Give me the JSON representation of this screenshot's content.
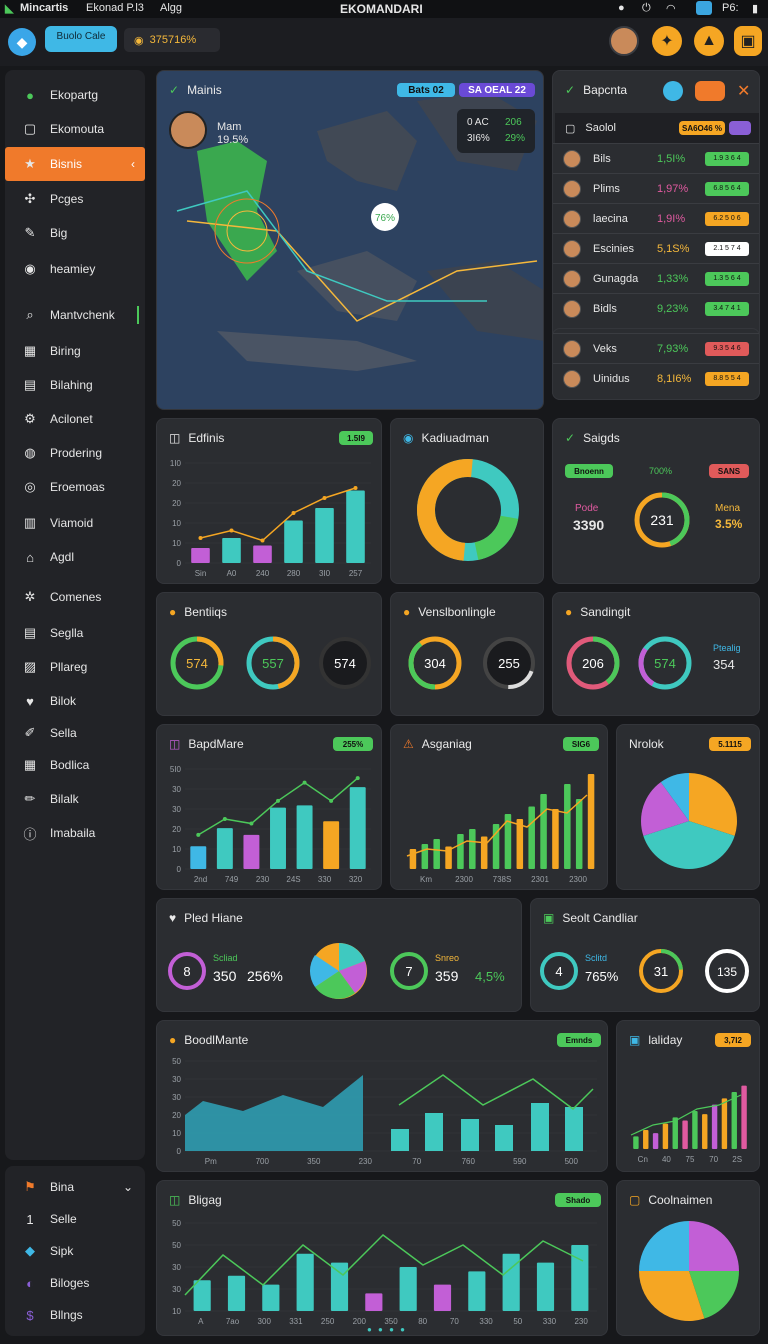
{
  "topbar": {
    "app": "Mincartis",
    "menu": [
      "Ekonad P.l3",
      "Algg"
    ],
    "title": "EKOMANDARI",
    "right_label": "P6:"
  },
  "toolbar": {
    "brand_line1": "Buolo Cale",
    "stat": "375716%"
  },
  "sidebar": {
    "items": [
      {
        "label": "Ekopartg",
        "icon": "bolt-icon"
      },
      {
        "label": "Ekomouta",
        "icon": "square-icon"
      },
      {
        "label": "Bisnis",
        "icon": "star-icon",
        "active": true
      },
      {
        "label": "Pcges",
        "icon": "puzzle-icon"
      },
      {
        "label": "Big",
        "icon": "pen-icon"
      },
      {
        "label": "heamiey",
        "icon": "dot-icon"
      },
      {
        "label": "Mantvchenk",
        "icon": "search-icon"
      },
      {
        "label": "Biring",
        "icon": "grid-icon"
      },
      {
        "label": "Bilahing",
        "icon": "bars-icon"
      },
      {
        "label": "Acilonet",
        "icon": "gear-icon"
      },
      {
        "label": "Prodering",
        "icon": "globe-icon"
      },
      {
        "label": "Eroemoas",
        "icon": "target-icon"
      },
      {
        "label": "Viamoid",
        "icon": "doc-icon"
      },
      {
        "label": "Agdl",
        "icon": "home-icon"
      },
      {
        "label": "Comenes",
        "icon": "cog-icon"
      },
      {
        "label": "Seglla",
        "icon": "file-icon"
      },
      {
        "label": "Pllareg",
        "icon": "chart-icon"
      },
      {
        "label": "Bilok",
        "icon": "heart-icon"
      },
      {
        "label": "Sella",
        "icon": "edit-icon"
      },
      {
        "label": "Bodlica",
        "icon": "book-icon"
      },
      {
        "label": "Bilalk",
        "icon": "pencil-icon"
      },
      {
        "label": "Imabaila",
        "icon": "info-icon"
      }
    ],
    "bottom": [
      {
        "label": "Bina",
        "icon": "flag-icon"
      },
      {
        "label": "Selle",
        "icon": "number-icon"
      },
      {
        "label": "Sipk",
        "icon": "drop-icon"
      },
      {
        "label": "Biloges",
        "icon": "moon-icon"
      },
      {
        "label": "Bllngs",
        "icon": "dollar-icon"
      }
    ]
  },
  "map": {
    "title": "Mainis",
    "pill1": "Bats 02",
    "pill2": "SA OEAL 22",
    "person_name": "Mam",
    "person_value": "19.5%",
    "stat_a": "0 AC",
    "stat_b": "206",
    "stat_c": "3I6%",
    "stat_d": "29%",
    "marker": "76%"
  },
  "rank": {
    "title": "Bapcnta",
    "header": {
      "label": "Saolol",
      "pill": "SA6O46 %"
    },
    "rows": [
      {
        "name": "Bils",
        "pct": "1,5I%",
        "badge": "1.9 3 6 4"
      },
      {
        "name": "Plims",
        "pct": "1,97%",
        "badge": "6.8 5 6 4"
      },
      {
        "name": "laecina",
        "pct": "1,9I%",
        "badge": "6.2 5 0 6"
      },
      {
        "name": "Escinies",
        "pct": "5,1S%",
        "badge": "2.1 5 7 4"
      },
      {
        "name": "Gunagda",
        "pct": "1,33%",
        "badge": "1.3 5 6 4"
      },
      {
        "name": "Bidls",
        "pct": "9,23%",
        "badge": "3.4 7 4 1"
      }
    ],
    "rows2": [
      {
        "name": "Veks",
        "pct": "7,93%",
        "badge": "9.3 5 4 6"
      },
      {
        "name": "Uinidus",
        "pct": "8,1I6%",
        "badge": "8.8 5 5 4"
      }
    ]
  },
  "card_edfinis": {
    "title": "Edfinis",
    "pill": "1.5I9",
    "y_ticks": [
      "1I0",
      "20",
      "20",
      "10",
      "10",
      "0"
    ],
    "x_ticks": [
      "Sin",
      "A0",
      "240",
      "280",
      "3I0",
      "257"
    ]
  },
  "card_kadi": {
    "title": "Kadiuadman"
  },
  "card_saigds": {
    "title": "Saigds",
    "pill_left": "Bnoenn",
    "mid": "700%",
    "pill_right": "SANS",
    "left_label": "Pode",
    "left_value": "3390",
    "center": "231",
    "right_label": "Mena",
    "right_value": "3.5%"
  },
  "ring_cards": [
    {
      "title": "Bentiiqs",
      "rings": [
        "574",
        "557",
        "574"
      ]
    },
    {
      "title": "Venslbonlingle",
      "rings": [
        "304",
        "255"
      ]
    },
    {
      "title": "Sandingit",
      "rings": [
        "206",
        "574"
      ],
      "side_label": "Ptealig",
      "side_value": "354"
    }
  ],
  "card_bapd": {
    "title": "BapdMare",
    "pill": "255%",
    "y_ticks": [
      "5I0",
      "30",
      "30",
      "20",
      "10",
      "0"
    ],
    "x_ticks": [
      "2nd",
      "749",
      "230",
      "24S",
      "330",
      "320"
    ]
  },
  "card_asganiag": {
    "title": "Asganiag",
    "pill": "SIG6",
    "x_ticks": [
      "Km",
      "2300",
      "738S",
      "2301",
      "2300"
    ]
  },
  "card_ntolok": {
    "title": "Nrolok",
    "pill": "5.1115"
  },
  "card_pled": {
    "title": "Pled Hiane",
    "r1": "8",
    "r1_label": "Scliad",
    "v1": "350",
    "v2": "256%",
    "r2": "7",
    "r2_label": "Snreo",
    "v3": "359",
    "v4": "4,5%"
  },
  "card_seok": {
    "title": "Seolt Candliar",
    "r1": "4",
    "r1_label": "Sclitd",
    "v1": "765%",
    "r2": "31",
    "r3": "135"
  },
  "card_booll": {
    "title": "BoodlMante",
    "pill": "Emnds",
    "y_ticks": [
      "50",
      "30",
      "30",
      "20",
      "10",
      "0"
    ],
    "x_ticks": [
      "Pm",
      "700",
      "350",
      "230",
      "70",
      "760",
      "590",
      "500"
    ]
  },
  "card_laliday": {
    "title": "laliday",
    "pill": "3,7I2",
    "x_ticks": [
      "Cn",
      "40",
      "75",
      "70",
      "2S"
    ]
  },
  "card_blig": {
    "title": "Bligag",
    "pill": "Shado",
    "y_ticks": [
      "50",
      "50",
      "30",
      "30",
      "10"
    ],
    "x_ticks": [
      "A",
      "7ao",
      "300",
      "331",
      "250",
      "200",
      "350",
      "80",
      "70",
      "330",
      "50",
      "330",
      "230"
    ]
  },
  "card_cool": {
    "title": "Coolnaimen"
  },
  "colors": {
    "accent": "#f07a2b",
    "green": "#4cc85a",
    "teal": "#3fc9c0",
    "purple": "#c25fd6",
    "yellow": "#f5b83b"
  },
  "chart_data": [
    {
      "type": "bar",
      "title": "Edfinis",
      "categories": [
        "Sin",
        "A0",
        "240",
        "280",
        "3I0",
        "257"
      ],
      "values": [
        6,
        10,
        7,
        17,
        22,
        29
      ],
      "line": [
        10,
        13,
        9,
        20,
        26,
        30
      ],
      "ylim": [
        0,
        40
      ]
    },
    {
      "type": "pie",
      "title": "Kadiuadman",
      "values": [
        55,
        45
      ]
    },
    {
      "type": "bar",
      "title": "BapdMare",
      "values": [
        10,
        18,
        15,
        27,
        28,
        21,
        36
      ],
      "line": [
        15,
        22,
        20,
        30,
        38,
        30,
        40
      ]
    },
    {
      "type": "bar",
      "title": "Asganiag",
      "values": [
        8,
        10,
        12,
        9,
        14,
        16,
        13,
        18,
        22,
        20,
        25,
        30,
        24,
        34,
        28,
        38
      ]
    },
    {
      "type": "pie",
      "title": "Nrolok",
      "values": [
        30,
        40,
        20,
        10
      ]
    },
    {
      "type": "area",
      "title": "BoodlMante",
      "values": [
        18,
        24,
        20,
        28,
        22,
        30,
        34,
        40
      ]
    },
    {
      "type": "bar",
      "title": "laliday",
      "values": [
        4,
        6,
        5,
        8,
        10,
        9,
        12,
        11,
        14,
        16,
        18,
        20
      ]
    },
    {
      "type": "bar",
      "title": "Bligag",
      "values": [
        14,
        16,
        12,
        26,
        22,
        8,
        20,
        12,
        18,
        26,
        22,
        30
      ]
    },
    {
      "type": "pie",
      "title": "Coolnaimen",
      "values": [
        25,
        20,
        30,
        25
      ]
    }
  ]
}
